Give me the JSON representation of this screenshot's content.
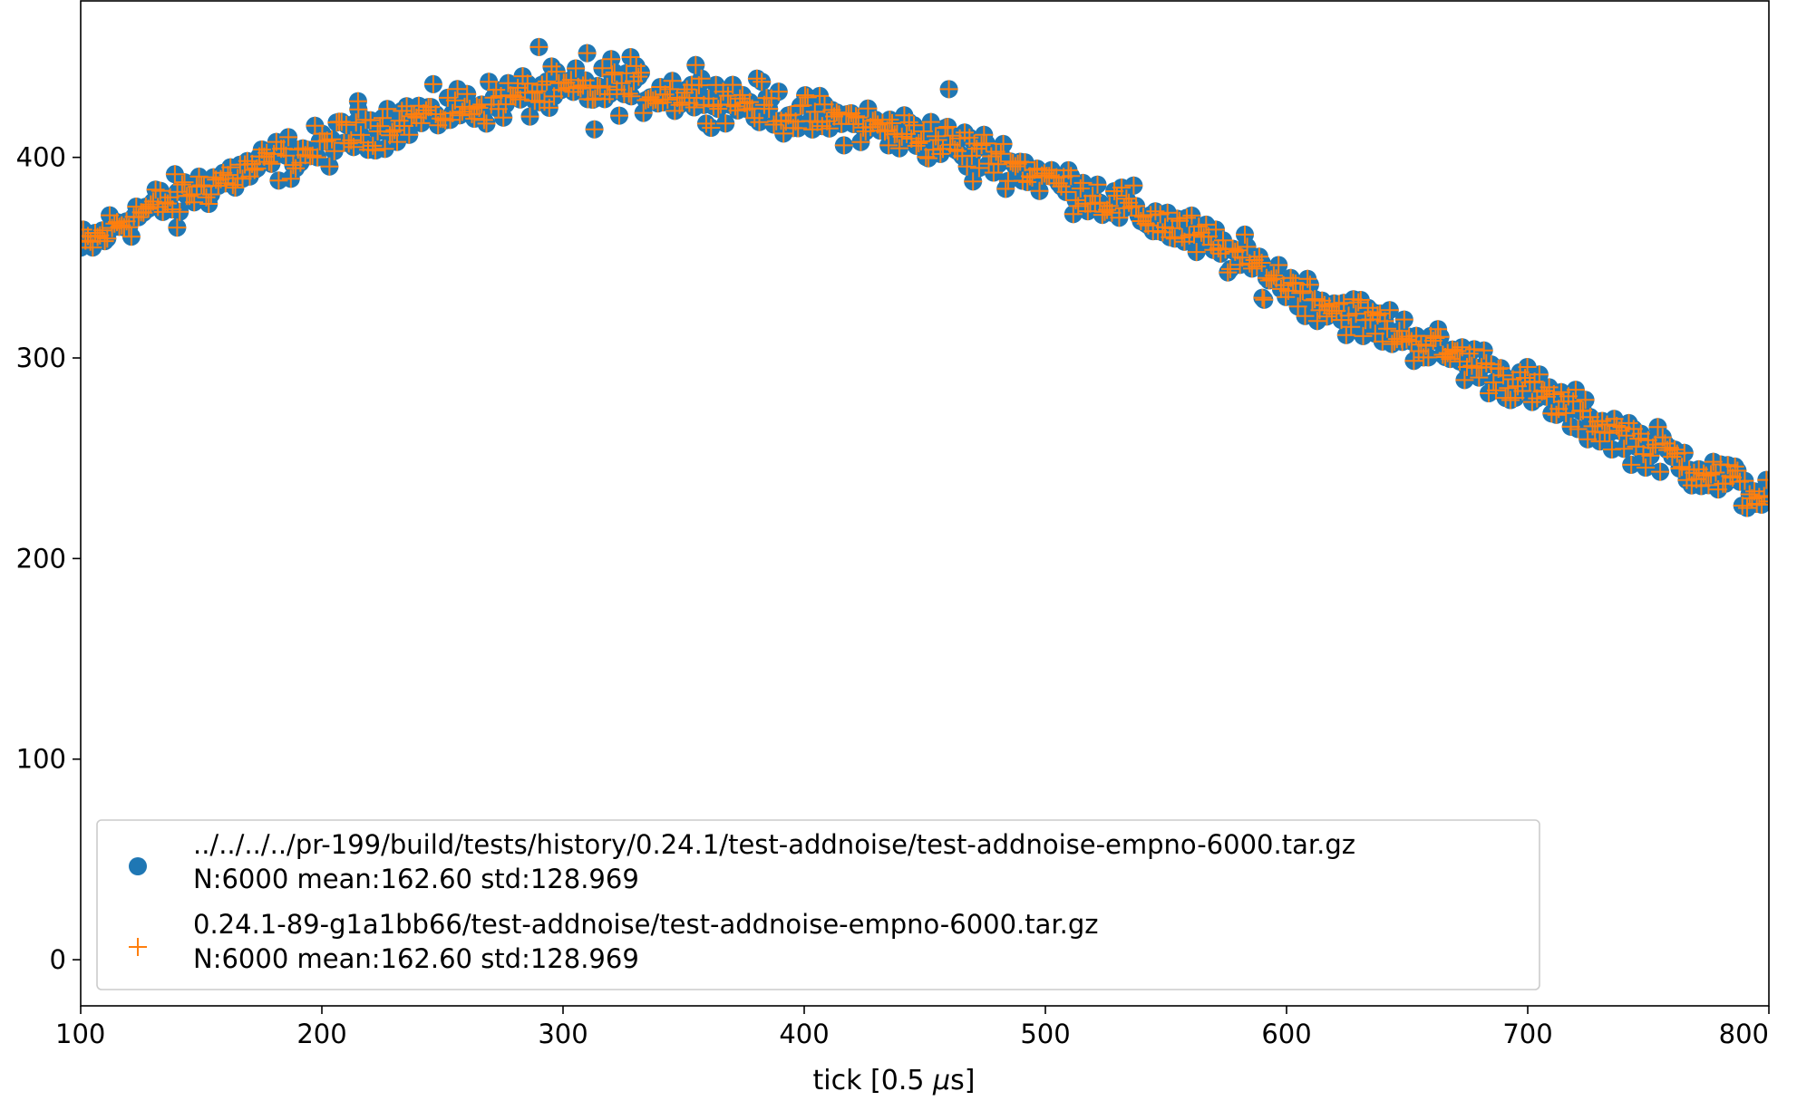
{
  "chart_data": {
    "type": "scatter",
    "xlabel_main": "tick [0.5 ",
    "xlabel_mu": "μ",
    "xlabel_tail": "s]",
    "ylabel": "",
    "title": "",
    "xlim": [
      100,
      800
    ],
    "ylim": [
      -23,
      478
    ],
    "xticks": [
      "100",
      "200",
      "300",
      "400",
      "500",
      "600",
      "700",
      "800"
    ],
    "yticks": [
      "0",
      "100",
      "200",
      "300",
      "400"
    ],
    "grid": false,
    "legend_position": "lower-left",
    "series": [
      {
        "name_line1": "../../../../pr-199/build/tests/history/0.24.1/test-addnoise/test-addnoise-empno-6000.tar.gz",
        "name_line2": "N:6000 mean:162.60 std:128.969",
        "marker": "circle",
        "color": "#1f77b4"
      },
      {
        "name_line1": "0.24.1-89-g1a1bb66/test-addnoise/test-addnoise-empno-6000.tar.gz",
        "name_line2": "N:6000 mean:162.60 std:128.969",
        "marker": "plus",
        "color": "#ff7f0e"
      }
    ],
    "shared_curve": {
      "x": [
        100,
        120,
        150,
        180,
        200,
        220,
        250,
        280,
        300,
        320,
        350,
        380,
        400,
        420,
        450,
        480,
        500,
        520,
        550,
        580,
        600,
        620,
        650,
        680,
        700,
        720,
        750,
        780,
        800
      ],
      "y": [
        354,
        370,
        385,
        398,
        405,
        415,
        423,
        430,
        433,
        434,
        432,
        427,
        420,
        418,
        410,
        400,
        390,
        381,
        367,
        350,
        337,
        325,
        311,
        296,
        285,
        272,
        256,
        240,
        230
      ]
    },
    "outliers": {
      "x": [
        290,
        310,
        320,
        328,
        355,
        460,
        470,
        313,
        435,
        140,
        215,
        590,
        648
      ],
      "y": [
        455,
        452,
        449,
        450,
        446,
        434,
        388,
        414,
        406,
        365,
        428,
        330,
        308
      ]
    },
    "n_points_per_series": 700,
    "noise_amplitude": 9
  }
}
